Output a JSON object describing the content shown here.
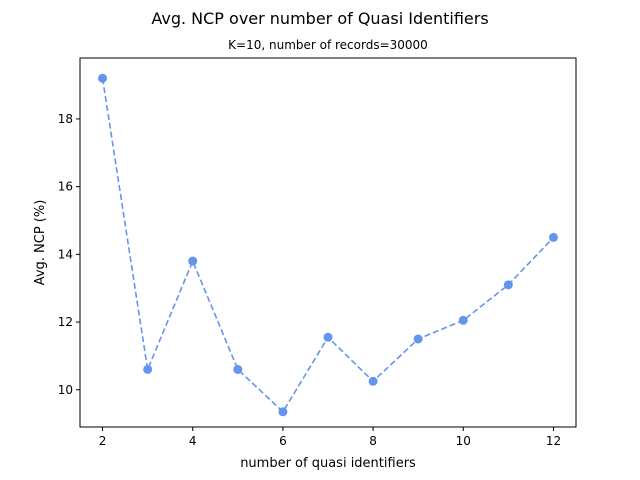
{
  "chart_data": {
    "type": "line",
    "title": "Avg. NCP over number of Quasi Identifiers",
    "subtitle": "K=10, number of records=30000",
    "xlabel": "number of quasi identifiers",
    "ylabel": "Avg. NCP (%)",
    "xlim": [
      1.5,
      12.5
    ],
    "ylim": [
      8.9,
      19.8
    ],
    "xticks": [
      2,
      4,
      6,
      8,
      10,
      12
    ],
    "yticks": [
      10,
      12,
      14,
      16,
      18
    ],
    "grid": false,
    "line_style": "dashed",
    "marker": "circle",
    "color": "#6495ED",
    "series": [
      {
        "x": [
          2,
          3,
          4,
          5,
          6,
          7,
          8,
          9,
          10,
          11,
          12
        ],
        "values": [
          19.2,
          10.6,
          13.8,
          10.6,
          9.35,
          11.55,
          10.25,
          11.5,
          12.05,
          13.1,
          14.5
        ]
      }
    ]
  }
}
